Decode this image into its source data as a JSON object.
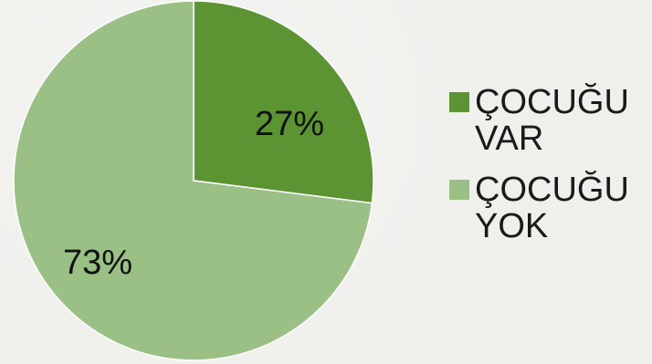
{
  "chart_data": {
    "type": "pie",
    "categories": [
      "ÇOCUĞU VAR",
      "ÇOCUĞU YOK"
    ],
    "values": [
      27,
      73
    ],
    "data_labels": [
      "27%",
      "73%"
    ],
    "colors": [
      "#5c9433",
      "#9bc086"
    ],
    "legend_position": "right",
    "title": ""
  },
  "legend": {
    "items": [
      {
        "label": "ÇOCUĞU VAR",
        "color": "#5c9433"
      },
      {
        "label": "ÇOCUĞU YOK",
        "color": "#9bc086"
      }
    ]
  }
}
